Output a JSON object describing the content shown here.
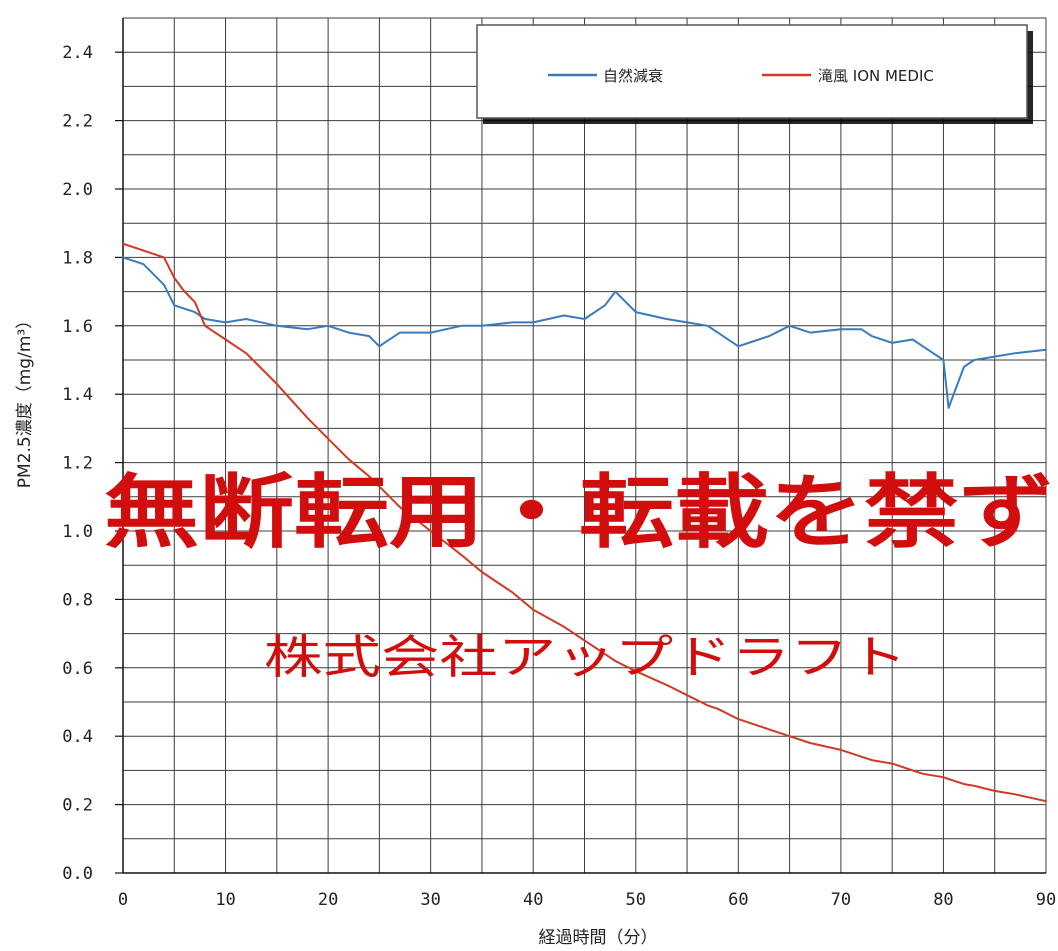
{
  "chart_data": {
    "type": "line",
    "title": "",
    "xlabel": "経過時間（分）",
    "ylabel": "PM2.5濃度（mg/m³）",
    "xlim": [
      0,
      90
    ],
    "ylim": [
      0.0,
      2.5
    ],
    "x_ticks": [
      "0",
      "10",
      "20",
      "30",
      "40",
      "50",
      "60",
      "70",
      "80",
      "90"
    ],
    "y_ticks": [
      "0.0",
      "0.2",
      "0.4",
      "0.6",
      "0.8",
      "1.0",
      "1.2",
      "1.4",
      "1.6",
      "1.8",
      "2.0",
      "2.2",
      "2.4"
    ],
    "grid": true,
    "legend_position": "top-right",
    "x": [
      0,
      2,
      4,
      5,
      6,
      7,
      8,
      10,
      12,
      15,
      18,
      20,
      22,
      24,
      25,
      27,
      30,
      33,
      35,
      38,
      40,
      43,
      45,
      47,
      48,
      50,
      53,
      55,
      57,
      58,
      60,
      62,
      63,
      65,
      67,
      70,
      72,
      73,
      75,
      77,
      78,
      80,
      80.5,
      81,
      82,
      83,
      85,
      87,
      90
    ],
    "series": [
      {
        "name": "自然減衰",
        "color": "#3a7bbf",
        "values": [
          1.8,
          1.78,
          1.72,
          1.66,
          1.65,
          1.64,
          1.62,
          1.61,
          1.62,
          1.6,
          1.59,
          1.6,
          1.58,
          1.57,
          1.54,
          1.58,
          1.58,
          1.6,
          1.6,
          1.61,
          1.61,
          1.63,
          1.62,
          1.66,
          1.7,
          1.64,
          1.62,
          1.61,
          1.6,
          1.58,
          1.54,
          1.56,
          1.57,
          1.6,
          1.58,
          1.59,
          1.59,
          1.57,
          1.55,
          1.56,
          1.54,
          1.5,
          1.36,
          1.4,
          1.48,
          1.5,
          1.51,
          1.52,
          1.53
        ]
      },
      {
        "name": "滝風 ION MEDIC",
        "color": "#d03a22",
        "values": [
          1.84,
          1.82,
          1.8,
          1.74,
          1.7,
          1.67,
          1.6,
          1.56,
          1.52,
          1.43,
          1.33,
          1.27,
          1.21,
          1.16,
          1.13,
          1.07,
          1.0,
          0.93,
          0.88,
          0.82,
          0.77,
          0.72,
          0.68,
          0.64,
          0.62,
          0.59,
          0.55,
          0.52,
          0.49,
          0.48,
          0.45,
          0.43,
          0.42,
          0.4,
          0.38,
          0.36,
          0.34,
          0.33,
          0.32,
          0.3,
          0.29,
          0.28,
          0.275,
          0.27,
          0.26,
          0.255,
          0.24,
          0.23,
          0.21
        ]
      }
    ]
  },
  "watermark": {
    "main": "無断転用・転載を禁ず",
    "sub": "株式会社アップドラフト"
  }
}
